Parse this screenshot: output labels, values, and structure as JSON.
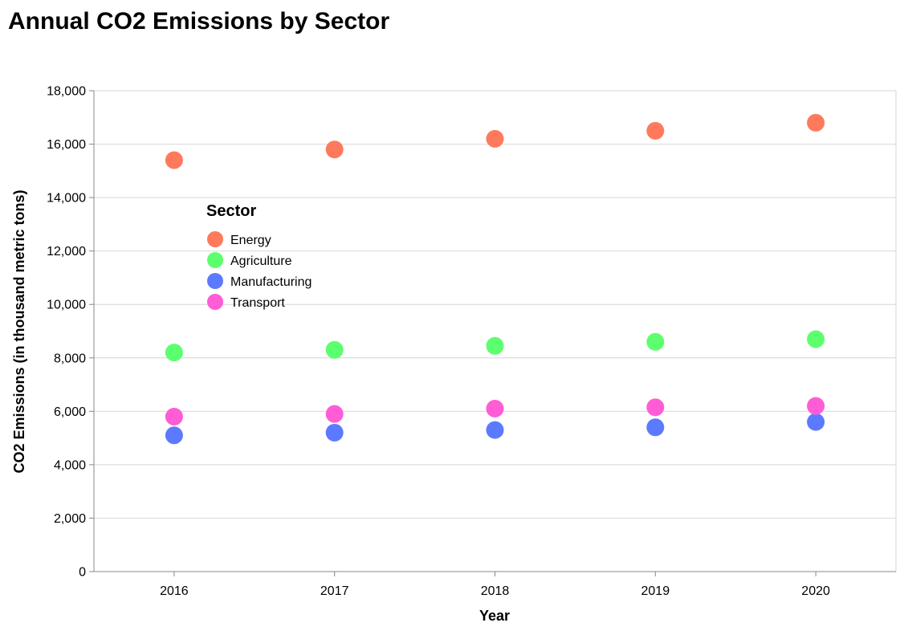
{
  "chart_data": {
    "type": "scatter",
    "title": "Annual CO2 Emissions by Sector",
    "xlabel": "Year",
    "ylabel": "CO2 Emissions (in thousand metric tons)",
    "x": [
      "2016",
      "2017",
      "2018",
      "2019",
      "2020"
    ],
    "ylim": [
      0,
      18000
    ],
    "yticks": [
      "0",
      "2,000",
      "4,000",
      "6,000",
      "8,000",
      "10,000",
      "12,000",
      "14,000",
      "16,000",
      "18,000"
    ],
    "ytick_values": [
      0,
      2000,
      4000,
      6000,
      8000,
      10000,
      12000,
      14000,
      16000,
      18000
    ],
    "grid": true,
    "legend": {
      "title": "Sector",
      "placement": "top-left"
    },
    "series": [
      {
        "name": "Energy",
        "color": "#ff7a5c",
        "values": [
          15400,
          15800,
          16200,
          16500,
          16800
        ]
      },
      {
        "name": "Agriculture",
        "color": "#5cff6e",
        "values": [
          8200,
          8300,
          8450,
          8600,
          8700
        ]
      },
      {
        "name": "Manufacturing",
        "color": "#5c7aff",
        "values": [
          5100,
          5200,
          5300,
          5400,
          5600
        ]
      },
      {
        "name": "Transport",
        "color": "#ff5cd6",
        "values": [
          5800,
          5900,
          6100,
          6150,
          6200
        ]
      }
    ]
  }
}
